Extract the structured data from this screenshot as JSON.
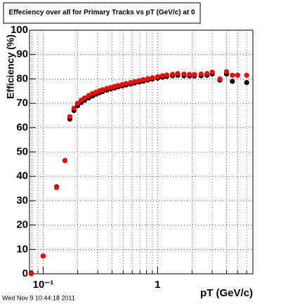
{
  "chart_data": {
    "type": "scatter",
    "title": "Effeciency over all for Primary Tracks vs pT (GeV/c) at 0",
    "xlabel": "pT (GeV/c)",
    "ylabel": "Efficiency (%)",
    "footer": "Wed Nov  9 10:44:18 2011",
    "log_x": true,
    "grid": true,
    "xlim": [
      0.076,
      6.8
    ],
    "ylim": [
      0,
      100
    ],
    "xticks": [
      {
        "value": 0.1,
        "label": "10⁻¹"
      },
      1
    ],
    "xminor": [
      0.08,
      0.09,
      0.2,
      0.3,
      0.4,
      0.5,
      0.6,
      0.7,
      0.8,
      0.9,
      2,
      3,
      4,
      5,
      6
    ],
    "yticks": [
      0,
      10,
      20,
      30,
      40,
      50,
      60,
      70,
      80,
      90,
      100
    ],
    "x": [
      0.0787,
      0.1,
      0.131,
      0.155,
      0.171,
      0.186,
      0.2,
      0.215,
      0.23,
      0.25,
      0.27,
      0.29,
      0.31,
      0.33,
      0.36,
      0.39,
      0.42,
      0.45,
      0.49,
      0.53,
      0.58,
      0.63,
      0.69,
      0.75,
      0.82,
      0.9,
      1.0,
      1.1,
      1.2,
      1.35,
      1.5,
      1.7,
      1.9,
      2.1,
      2.4,
      2.7,
      3.0,
      3.5,
      4.0,
      4.5,
      5.0,
      6.0
    ],
    "series": [
      {
        "color": "#000000",
        "values": [
          0.3,
          7.3,
          35.7,
          46.5,
          63.5,
          67,
          69,
          70.3,
          71.2,
          72.2,
          73,
          73.7,
          74.3,
          74.8,
          75.4,
          75.9,
          76.3,
          76.7,
          77.1,
          77.5,
          77.9,
          78.3,
          78.7,
          79.1,
          79.5,
          79.9,
          80.3,
          80.7,
          81,
          81.3,
          81.5,
          81.3,
          81.2,
          81.2,
          81.3,
          81.5,
          82,
          79.5,
          82,
          79,
          81.5,
          78.5
        ]
      },
      {
        "color": "#ff0000",
        "values": [
          0,
          7.3,
          35.4,
          46.5,
          64.5,
          68,
          70,
          71.3,
          72.2,
          73.2,
          74,
          74.6,
          75.1,
          75.6,
          76.1,
          76.5,
          76.9,
          77.3,
          77.7,
          78.1,
          78.5,
          78.9,
          79.3,
          79.7,
          80.1,
          80.5,
          80.9,
          81.3,
          81.6,
          81.9,
          82.2,
          82,
          81.8,
          81.8,
          82,
          82.2,
          82.8,
          80,
          83,
          81.5,
          81.5,
          81.5
        ]
      }
    ]
  }
}
